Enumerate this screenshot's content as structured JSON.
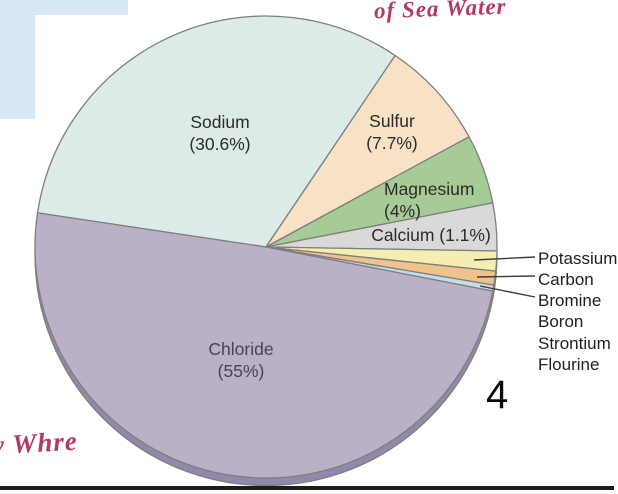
{
  "page": {
    "page_number": "4",
    "background_color": "#ffffff",
    "accent_blue_box_color": "#d9e7f5",
    "bottom_rule_color": "#1c1c1c"
  },
  "annotations": {
    "ink_color": "#b23a68",
    "bottom_note": "y Whre"
  },
  "chart_data": {
    "type": "pie",
    "title": "of Sea Water",
    "unit": "%",
    "outline_color": "#7e7e7e",
    "depth_rim_color": "#9189ab",
    "label_color": "#2b2b2b",
    "leader_line_color": "#3c3c3c",
    "slices": [
      {
        "label": "Sodium",
        "percent": 30.6,
        "label_lines": [
          "Sodium",
          "(30.6%)"
        ],
        "color": "#dcebe7",
        "start_angle": 171.5,
        "end_angle": 56
      },
      {
        "label": "Sulfur",
        "percent": 7.7,
        "label_lines": [
          "Sulfur",
          "(7.7%)"
        ],
        "color": "#f8e2c6",
        "start_angle": 56,
        "end_angle": 28.5
      },
      {
        "label": "Magnesium",
        "percent": 4,
        "label_lines": [
          "Magnesium",
          "(4%)"
        ],
        "color": "#a7cb97",
        "start_angle": 28.5,
        "end_angle": 11
      },
      {
        "label": "Calcium",
        "percent": 1.1,
        "label_lines": [
          "Calcium (1.1%)"
        ],
        "color": "#dbd9d7",
        "start_angle": 11,
        "end_angle": -1
      },
      {
        "label": "Potassium",
        "percent": null,
        "label_lines": [],
        "color": "#f6edb2",
        "start_angle": -1,
        "end_angle": -6
      },
      {
        "label": "Carbon",
        "percent": null,
        "label_lines": [],
        "color": "#f0c28c",
        "start_angle": -6,
        "end_angle": -9.5
      },
      {
        "label": "Bromine",
        "percent": null,
        "label_lines": [],
        "color": "#c3dde9",
        "start_angle": -9.5,
        "end_angle": -11
      },
      {
        "label": "Chloride",
        "percent": 55,
        "label_lines": [
          "Chloride",
          "(55%)"
        ],
        "color": "#bab1c7",
        "start_angle": -11,
        "end_angle": -188.5
      }
    ],
    "minor_labels": [
      {
        "label": "Potassium",
        "has_leader": true
      },
      {
        "label": "Carbon",
        "has_leader": true
      },
      {
        "label": "Bromine",
        "has_leader": true
      },
      {
        "label": "Boron",
        "has_leader": false
      },
      {
        "label": "Strontium",
        "has_leader": false
      },
      {
        "label": "Flourine",
        "has_leader": false
      }
    ]
  }
}
